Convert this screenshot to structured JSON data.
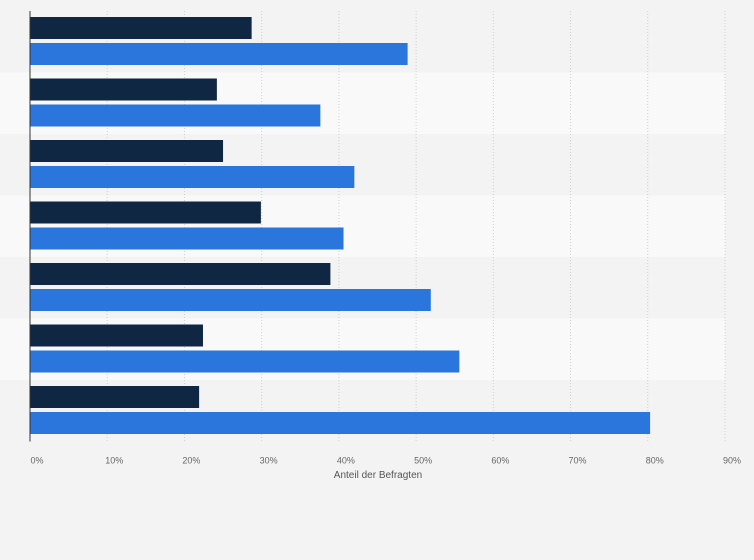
{
  "chart_data": {
    "type": "bar",
    "orientation": "horizontal",
    "categories": [
      "",
      "",
      "",
      "",
      "",
      "",
      ""
    ],
    "series": [
      {
        "color": "#0f2742",
        "values": [
          28.7,
          24.2,
          25.0,
          29.9,
          38.9,
          22.4,
          21.9
        ]
      },
      {
        "color": "#2a76dd",
        "values": [
          48.9,
          37.6,
          42.0,
          40.6,
          51.9,
          55.6,
          80.3
        ]
      }
    ],
    "xlabel": "Anteil der Befragten",
    "ylabel": "",
    "xlim": [
      0,
      90
    ],
    "x_ticks": [
      0,
      10,
      20,
      30,
      40,
      50,
      60,
      70,
      80,
      90
    ],
    "x_tick_labels": [
      "0%",
      "10%",
      "20%",
      "30%",
      "40%",
      "50%",
      "60%",
      "70%",
      "80%",
      "90%"
    ],
    "grid": true,
    "legend": "none"
  },
  "colors": {
    "band_dark": "#f3f3f3",
    "band_light": "#f9f9f9",
    "grid": "#cfcfcf",
    "axis": "#333333",
    "tick_text": "#666666"
  }
}
